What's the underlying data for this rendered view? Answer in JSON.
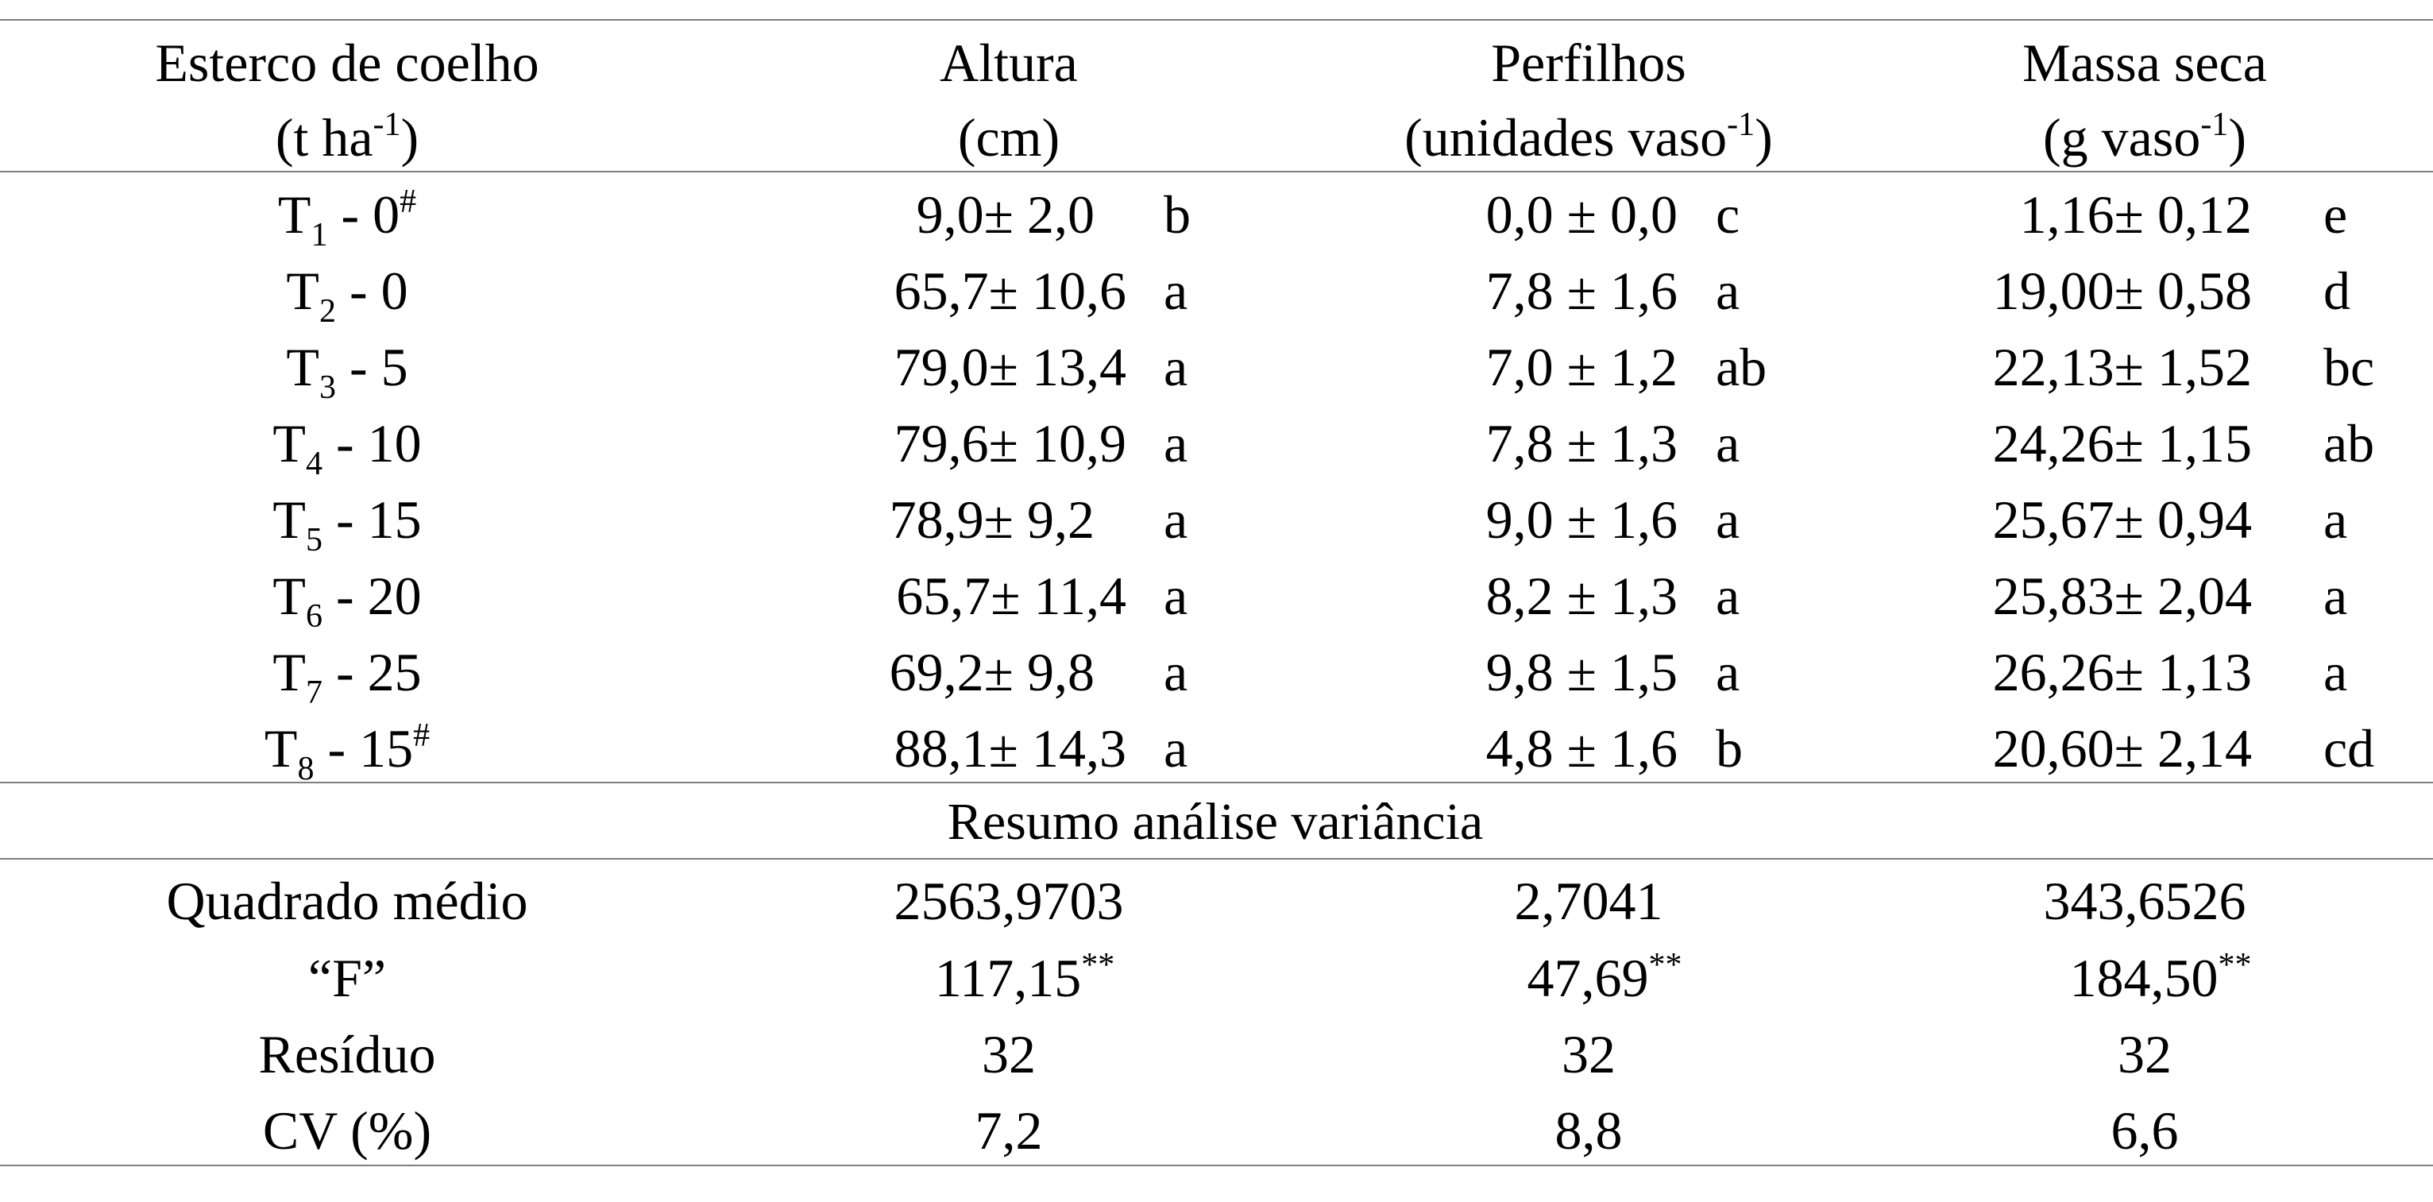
{
  "headers": [
    {
      "line1": "Esterco de coelho",
      "line2_text": "(t ha",
      "line2_sup": "-1",
      "line2_end": ")"
    },
    {
      "line1": "Altura",
      "line2_text": "(cm)",
      "line2_sup": "",
      "line2_end": ""
    },
    {
      "line1": "Perfilhos",
      "line2_text": "(unidades vaso",
      "line2_sup": "-1",
      "line2_end": ")"
    },
    {
      "line1": "Massa seca",
      "line2_text": "(g vaso",
      "line2_sup": "-1",
      "line2_end": ")"
    }
  ],
  "rows": [
    {
      "t": "T",
      "sub": "1",
      "dose": " - 0",
      "mark": "#",
      "altura": "9,0± 2,0",
      "altura_l": "b",
      "perf": "0,0 ± 0,0",
      "perf_l": "c",
      "massa": "1,16± 0,12",
      "massa_l": "e"
    },
    {
      "t": "T",
      "sub": "2",
      "dose": " - 0",
      "mark": "",
      "altura": "65,7± 10,6",
      "altura_l": "a",
      "perf": "7,8 ± 1,6",
      "perf_l": "a",
      "massa": "19,00± 0,58",
      "massa_l": "d"
    },
    {
      "t": "T",
      "sub": "3",
      "dose": " - 5",
      "mark": "",
      "altura": "79,0± 13,4",
      "altura_l": "a",
      "perf": "7,0 ± 1,2",
      "perf_l": "ab",
      "massa": "22,13± 1,52",
      "massa_l": "bc"
    },
    {
      "t": "T",
      "sub": "4",
      "dose": " - 10",
      "mark": "",
      "altura": "79,6± 10,9",
      "altura_l": "a",
      "perf": "7,8 ± 1,3",
      "perf_l": "a",
      "massa": "24,26± 1,15",
      "massa_l": "ab"
    },
    {
      "t": "T",
      "sub": "5",
      "dose": " - 15",
      "mark": "",
      "altura": "78,9± 9,2",
      "altura_l": "a",
      "perf": "9,0 ± 1,6",
      "perf_l": "a",
      "massa": "25,67± 0,94",
      "massa_l": "a"
    },
    {
      "t": "T",
      "sub": "6",
      "dose": " - 20",
      "mark": "",
      "altura": "65,7± 11,4",
      "altura_l": "a",
      "perf": "8,2 ± 1,3",
      "perf_l": "a",
      "massa": "25,83± 2,04",
      "massa_l": "a"
    },
    {
      "t": "T",
      "sub": "7",
      "dose": " - 25",
      "mark": "",
      "altura": "69,2± 9,8",
      "altura_l": "a",
      "perf": "9,8 ± 1,5",
      "perf_l": "a",
      "massa": "26,26± 1,13",
      "massa_l": "a"
    },
    {
      "t": "T",
      "sub": "8",
      "dose": " - 15",
      "mark": "#",
      "altura": "88,1± 14,3",
      "altura_l": "a",
      "perf": "4,8 ± 1,6",
      "perf_l": "b",
      "massa": "20,60± 2,14",
      "massa_l": "cd"
    }
  ],
  "section_title": "Resumo análise variância",
  "summary": [
    {
      "label": "Quadrado médio",
      "altura": "2563,9703",
      "altura_sup": "",
      "perf": "2,7041",
      "perf_sup": "",
      "massa": "343,6526",
      "massa_sup": ""
    },
    {
      "label": "“F”",
      "altura": "117,15",
      "altura_sup": "**",
      "perf": "47,69",
      "perf_sup": "**",
      "massa": "184,50",
      "massa_sup": "**"
    },
    {
      "label": "Resíduo",
      "altura": "32",
      "altura_sup": "",
      "perf": "32",
      "perf_sup": "",
      "massa": "32",
      "massa_sup": ""
    },
    {
      "label": "CV (%)",
      "altura": "7,2",
      "altura_sup": "",
      "perf": "8,8",
      "perf_sup": "",
      "massa": "6,6",
      "massa_sup": ""
    }
  ]
}
